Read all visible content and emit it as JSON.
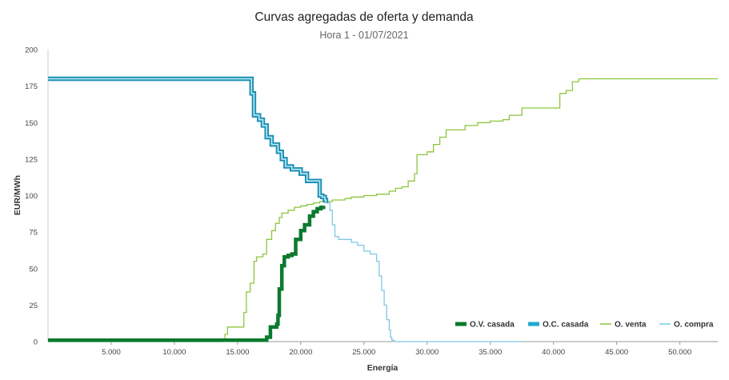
{
  "chart_data": {
    "type": "line",
    "title": "Curvas agregadas de oferta y demanda",
    "subtitle": "Hora 1 - 01/07/2021",
    "xlabel": "Energía",
    "ylabel": "EUR/MWh",
    "xlim": [
      0,
      53000
    ],
    "ylim": [
      0,
      200
    ],
    "x_ticks": [
      5000,
      10000,
      15000,
      20000,
      25000,
      30000,
      35000,
      40000,
      45000,
      50000
    ],
    "x_tick_labels": [
      "5.000",
      "10.000",
      "15.000",
      "20.000",
      "25.000",
      "30.000",
      "35.000",
      "40.000",
      "45.000",
      "50.000"
    ],
    "y_ticks": [
      0,
      25,
      50,
      75,
      100,
      125,
      150,
      175,
      200
    ],
    "y_tick_labels": [
      "0",
      "25",
      "50",
      "75",
      "100",
      "125",
      "150",
      "175",
      "200"
    ],
    "grid": false,
    "legend_position": "bottom-right",
    "series": [
      {
        "name": "O.V. casada",
        "color": "#0b7a2e",
        "style": "thick",
        "x": [
          0,
          17000,
          17300,
          17600,
          18000,
          18100,
          18200,
          18300,
          18500,
          18700,
          19000,
          19300,
          19600,
          20000,
          20300,
          20700,
          21000,
          21300,
          21600,
          21800
        ],
        "y": [
          1,
          1,
          3,
          10,
          10,
          12,
          18,
          36,
          52,
          58,
          59,
          60,
          70,
          76,
          80,
          86,
          89,
          91,
          92,
          93
        ]
      },
      {
        "name": "O.C. casada",
        "color": "#1fa9cf",
        "style": "thick",
        "x": [
          0,
          16000,
          16100,
          16300,
          16700,
          17000,
          17300,
          17700,
          18200,
          18500,
          18800,
          19300,
          20000,
          20500,
          21200,
          21500,
          21700,
          21900,
          22000
        ],
        "y": [
          180,
          180,
          170,
          155,
          152,
          148,
          140,
          135,
          130,
          125,
          120,
          118,
          115,
          110,
          110,
          100,
          99,
          97,
          95
        ]
      },
      {
        "name": "O. venta",
        "color": "#8dc63f",
        "style": "thin",
        "x": [
          0,
          13500,
          13800,
          14000,
          14200,
          15000,
          15500,
          15700,
          16000,
          16300,
          16500,
          16700,
          17000,
          17300,
          17700,
          18000,
          18300,
          18500,
          19000,
          19500,
          20000,
          20500,
          21000,
          21500,
          22000,
          22500,
          23000,
          23500,
          24000,
          25000,
          26000,
          27000,
          27500,
          28000,
          28500,
          29000,
          29200,
          30000,
          30500,
          31000,
          31500,
          32000,
          33000,
          34000,
          35000,
          36000,
          36500,
          37500,
          38000,
          39000,
          40000,
          40500,
          41000,
          41500,
          42000,
          43000,
          45000,
          50000,
          53000
        ],
        "y": [
          0,
          0,
          2,
          5,
          10,
          10,
          20,
          34,
          40,
          55,
          58,
          58,
          60,
          70,
          76,
          81,
          85,
          88,
          90,
          92,
          93,
          94,
          95,
          96,
          96,
          97,
          97,
          98,
          99,
          100,
          101,
          103,
          105,
          106,
          110,
          115,
          128,
          130,
          135,
          140,
          145,
          145,
          148,
          150,
          151,
          152,
          155,
          160,
          160,
          160,
          160,
          170,
          172,
          178,
          180,
          180,
          180,
          180,
          180
        ]
      },
      {
        "name": "O. compra",
        "color": "#7ec8e3",
        "style": "thin",
        "x": [
          0,
          16000,
          16100,
          16300,
          16700,
          17000,
          17300,
          17700,
          18200,
          18500,
          18800,
          19300,
          20000,
          20500,
          21200,
          21500,
          21800,
          22000,
          22300,
          22500,
          22700,
          23000,
          24000,
          24500,
          25000,
          25500,
          26000,
          26200,
          26400,
          26600,
          26800,
          27000,
          27100,
          27200,
          27400,
          28000,
          30000,
          35000,
          37500
        ],
        "y": [
          181,
          181,
          170,
          155,
          152,
          148,
          140,
          135,
          130,
          125,
          120,
          118,
          115,
          110,
          110,
          100,
          98,
          95,
          90,
          80,
          72,
          70,
          68,
          66,
          62,
          60,
          55,
          45,
          35,
          25,
          15,
          8,
          3,
          1,
          0,
          0,
          0,
          0,
          0
        ]
      }
    ]
  }
}
